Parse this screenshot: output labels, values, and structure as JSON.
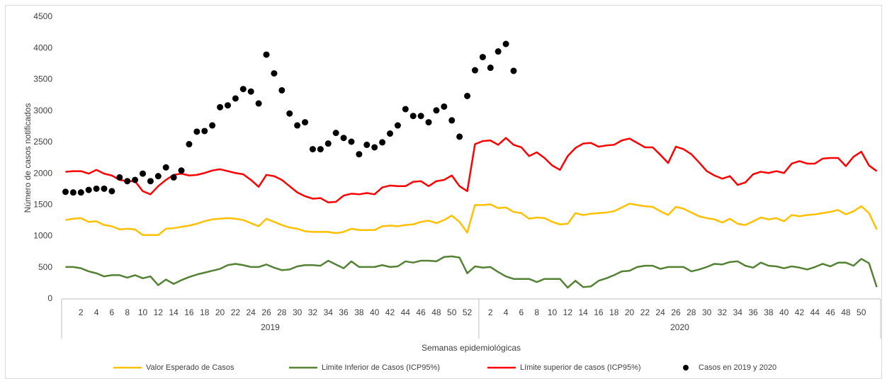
{
  "chart_data": {
    "type": "line",
    "xlabel": "Semanas epidemiológicas",
    "ylabel": "Número de casos notificados",
    "ylim": [
      0,
      4500
    ],
    "yticks": [
      0,
      500,
      1000,
      1500,
      2000,
      2500,
      3000,
      3500,
      4000,
      4500
    ],
    "grid": false,
    "legend": "bottom",
    "groups": [
      {
        "label": "2019",
        "size": 54
      },
      {
        "label": "2020",
        "size": 52
      }
    ],
    "categories": [
      null,
      null,
      "2",
      null,
      "4",
      null,
      "6",
      null,
      "8",
      null,
      "10",
      null,
      "12",
      null,
      "14",
      null,
      "16",
      null,
      "18",
      null,
      "20",
      null,
      "22",
      null,
      "24",
      null,
      "26",
      null,
      "28",
      null,
      "30",
      null,
      "32",
      null,
      "34",
      null,
      "36",
      null,
      "38",
      null,
      "40",
      null,
      "42",
      null,
      "44",
      null,
      "46",
      null,
      "48",
      null,
      "50",
      null,
      "52",
      null,
      null,
      "2",
      null,
      "4",
      null,
      "6",
      null,
      "8",
      null,
      "10",
      null,
      "12",
      null,
      "14",
      null,
      "16",
      null,
      "18",
      null,
      "20",
      null,
      "22",
      null,
      "24",
      null,
      "26",
      null,
      "28",
      null,
      "30",
      null,
      "32",
      null,
      "34",
      null,
      "36",
      null,
      "38",
      null,
      "40",
      null,
      "42",
      null,
      "44",
      null,
      "46",
      null,
      "48",
      null,
      "50",
      null,
      null
    ],
    "series": [
      {
        "name": "Valor Esperado de Casos",
        "type": "line",
        "color": "#ffc000",
        "values": [
          1260,
          1280,
          1290,
          1230,
          1240,
          1180,
          1160,
          1110,
          1120,
          1110,
          1020,
          1020,
          1020,
          1120,
          1130,
          1150,
          1170,
          1200,
          1240,
          1270,
          1280,
          1290,
          1280,
          1260,
          1210,
          1160,
          1280,
          1230,
          1180,
          1140,
          1120,
          1080,
          1070,
          1070,
          1070,
          1050,
          1070,
          1120,
          1100,
          1100,
          1100,
          1160,
          1170,
          1160,
          1180,
          1190,
          1230,
          1250,
          1210,
          1260,
          1330,
          1230,
          1060,
          1500,
          1500,
          1510,
          1450,
          1460,
          1390,
          1370,
          1280,
          1300,
          1290,
          1230,
          1190,
          1200,
          1370,
          1340,
          1360,
          1370,
          1380,
          1400,
          1460,
          1520,
          1500,
          1480,
          1470,
          1400,
          1340,
          1470,
          1440,
          1380,
          1320,
          1290,
          1270,
          1220,
          1280,
          1200,
          1180,
          1240,
          1300,
          1270,
          1290,
          1240,
          1340,
          1320,
          1340,
          1350,
          1370,
          1390,
          1420,
          1350,
          1400,
          1480,
          1370,
          1110
        ]
      },
      {
        "name": "Limite Inferior de Casos (ICP95%)",
        "type": "line",
        "color": "#548235",
        "values": [
          510,
          510,
          490,
          440,
          410,
          360,
          380,
          380,
          340,
          380,
          330,
          360,
          220,
          310,
          240,
          300,
          350,
          390,
          420,
          450,
          480,
          540,
          560,
          540,
          510,
          510,
          550,
          500,
          460,
          470,
          520,
          540,
          540,
          530,
          610,
          550,
          490,
          600,
          510,
          510,
          510,
          540,
          510,
          520,
          600,
          580,
          610,
          610,
          600,
          670,
          680,
          660,
          410,
          520,
          500,
          510,
          430,
          360,
          320,
          320,
          320,
          270,
          320,
          320,
          320,
          180,
          290,
          190,
          200,
          290,
          330,
          380,
          440,
          450,
          510,
          530,
          530,
          480,
          510,
          510,
          510,
          440,
          470,
          510,
          560,
          550,
          590,
          600,
          530,
          500,
          580,
          530,
          520,
          490,
          520,
          500,
          470,
          510,
          560,
          520,
          580,
          580,
          530,
          640,
          570,
          190
        ]
      },
      {
        "name": "Límite superior de casos (ICP95%)",
        "type": "line",
        "color": "#ff0000",
        "values": [
          2030,
          2040,
          2040,
          2000,
          2060,
          2000,
          1970,
          1900,
          1880,
          1880,
          1720,
          1670,
          1800,
          1900,
          1980,
          2000,
          1970,
          1980,
          2010,
          2050,
          2070,
          2040,
          2010,
          1990,
          1900,
          1790,
          1980,
          1960,
          1900,
          1800,
          1700,
          1640,
          1600,
          1610,
          1540,
          1550,
          1650,
          1680,
          1670,
          1690,
          1670,
          1780,
          1810,
          1800,
          1800,
          1870,
          1880,
          1800,
          1880,
          1900,
          1970,
          1800,
          1720,
          2470,
          2520,
          2530,
          2460,
          2570,
          2460,
          2420,
          2280,
          2340,
          2250,
          2130,
          2060,
          2280,
          2410,
          2480,
          2490,
          2430,
          2450,
          2460,
          2530,
          2560,
          2490,
          2420,
          2420,
          2300,
          2170,
          2430,
          2390,
          2310,
          2180,
          2040,
          1970,
          1920,
          1960,
          1820,
          1860,
          1990,
          2030,
          2010,
          2040,
          2010,
          2160,
          2200,
          2160,
          2160,
          2240,
          2250,
          2250,
          2120,
          2270,
          2350,
          2130,
          2040
        ]
      },
      {
        "name": "Casos en 2019 y 2020",
        "type": "scatter",
        "color": "#000000",
        "values": [
          1710,
          1700,
          1700,
          1740,
          1760,
          1760,
          1720,
          1940,
          1880,
          1900,
          2000,
          1880,
          1960,
          2100,
          1940,
          2050,
          2470,
          2670,
          2680,
          2770,
          3060,
          3090,
          3200,
          3350,
          3310,
          3120,
          3900,
          3600,
          3330,
          2960,
          2770,
          2820,
          2390,
          2390,
          2480,
          2650,
          2570,
          2510,
          2310,
          2460,
          2420,
          2500,
          2640,
          2770,
          3030,
          2920,
          2920,
          2820,
          3010,
          3070,
          2850,
          2590,
          3240,
          3650,
          3860,
          3690,
          3950,
          4070,
          3640,
          null,
          null,
          null,
          null,
          null,
          null,
          null,
          null,
          null,
          null,
          null,
          null,
          null,
          null,
          null,
          null,
          null,
          null,
          null,
          null,
          null,
          null,
          null,
          null,
          null,
          null,
          null,
          null,
          null,
          null,
          null,
          null,
          null,
          null,
          null,
          null,
          null,
          null,
          null,
          null,
          null,
          null
        ]
      }
    ]
  }
}
